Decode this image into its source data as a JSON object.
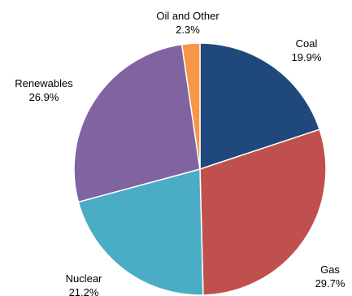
{
  "chart_data": {
    "type": "pie",
    "categories": [
      "Coal",
      "Gas",
      "Nuclear",
      "Renewables",
      "Oil and Other"
    ],
    "values": [
      19.9,
      29.7,
      21.2,
      26.9,
      2.3
    ],
    "value_labels": [
      "19.9%",
      "29.7%",
      "21.2%",
      "26.9%",
      "2.3%"
    ],
    "colors": [
      "#1f497d",
      "#c0504d",
      "#4bacc6",
      "#8064a2",
      "#f79646"
    ],
    "start": "12 o'clock",
    "direction": "clockwise",
    "legend": "none",
    "labels": "outside"
  }
}
